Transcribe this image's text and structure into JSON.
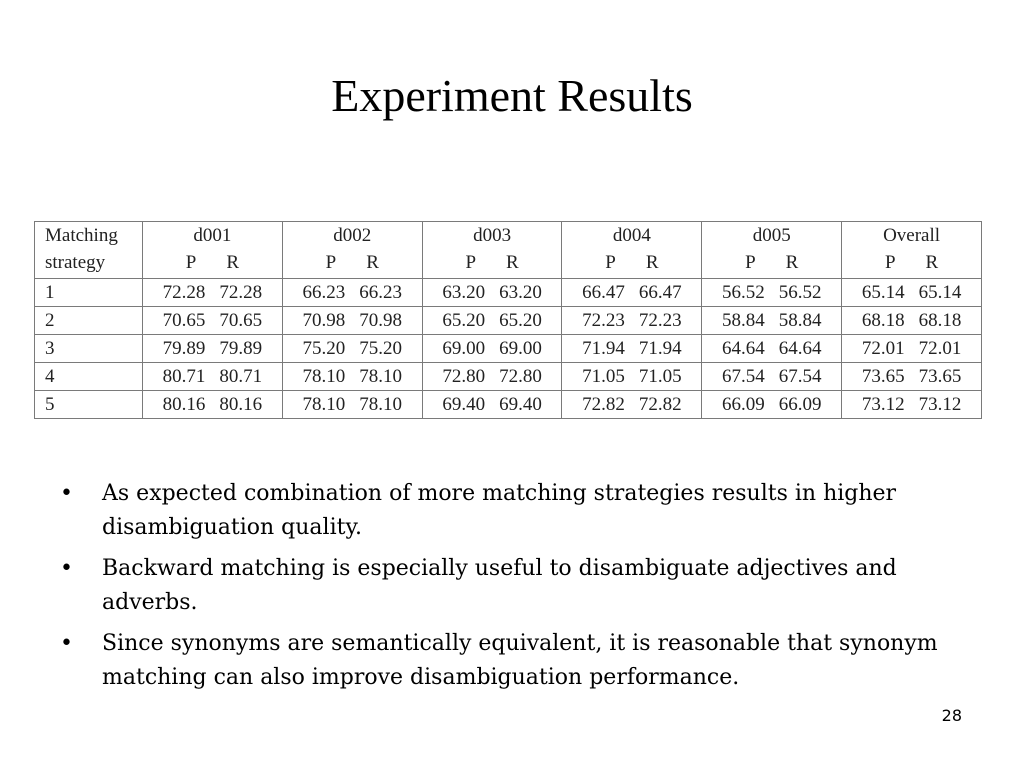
{
  "slide": {
    "title": "Experiment Results",
    "page_number": "28"
  },
  "table": {
    "header": {
      "strategy_line1": "Matching",
      "strategy_line2": "strategy",
      "columns": [
        "d001",
        "d002",
        "d003",
        "d004",
        "d005",
        "Overall"
      ],
      "p_label": "P",
      "r_label": "R"
    },
    "rows": [
      {
        "strategy": "1",
        "values": [
          [
            "72.28",
            "72.28"
          ],
          [
            "66.23",
            "66.23"
          ],
          [
            "63.20",
            "63.20"
          ],
          [
            "66.47",
            "66.47"
          ],
          [
            "56.52",
            "56.52"
          ],
          [
            "65.14",
            "65.14"
          ]
        ]
      },
      {
        "strategy": "2",
        "values": [
          [
            "70.65",
            "70.65"
          ],
          [
            "70.98",
            "70.98"
          ],
          [
            "65.20",
            "65.20"
          ],
          [
            "72.23",
            "72.23"
          ],
          [
            "58.84",
            "58.84"
          ],
          [
            "68.18",
            "68.18"
          ]
        ]
      },
      {
        "strategy": "3",
        "values": [
          [
            "79.89",
            "79.89"
          ],
          [
            "75.20",
            "75.20"
          ],
          [
            "69.00",
            "69.00"
          ],
          [
            "71.94",
            "71.94"
          ],
          [
            "64.64",
            "64.64"
          ],
          [
            "72.01",
            "72.01"
          ]
        ]
      },
      {
        "strategy": "4",
        "values": [
          [
            "80.71",
            "80.71"
          ],
          [
            "78.10",
            "78.10"
          ],
          [
            "72.80",
            "72.80"
          ],
          [
            "71.05",
            "71.05"
          ],
          [
            "67.54",
            "67.54"
          ],
          [
            "73.65",
            "73.65"
          ]
        ]
      },
      {
        "strategy": "5",
        "values": [
          [
            "80.16",
            "80.16"
          ],
          [
            "78.10",
            "78.10"
          ],
          [
            "69.40",
            "69.40"
          ],
          [
            "72.82",
            "72.82"
          ],
          [
            "66.09",
            "66.09"
          ],
          [
            "73.12",
            "73.12"
          ]
        ]
      }
    ]
  },
  "bullets": {
    "marker": "•",
    "items": [
      "As expected combination of more matching strategies results in higher disambiguation quality.",
      "Backward matching is especially useful to disambiguate adjectives and adverbs.",
      "Since synonyms are semantically equivalent, it is reasonable that synonym matching can also improve disambiguation performance."
    ]
  }
}
